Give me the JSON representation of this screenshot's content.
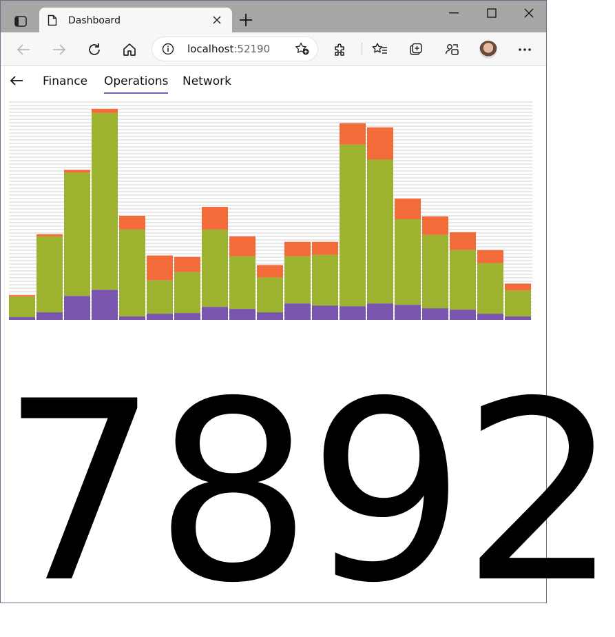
{
  "browser": {
    "tab_title": "Dashboard",
    "address_host": "localhost",
    "address_port": ":52190"
  },
  "nav": {
    "back_icon": "arrow-left-icon",
    "tabs": [
      {
        "label": "Finance",
        "active": false
      },
      {
        "label": "Operations",
        "active": true
      },
      {
        "label": "Network",
        "active": false
      }
    ]
  },
  "colors": {
    "accent": "#7a5bb8",
    "purple": "#7a55b0",
    "green": "#9db22f",
    "orange": "#f46b3a"
  },
  "chart_data": {
    "type": "bar",
    "stacked": true,
    "grid": true,
    "ylim": [
      0,
      320
    ],
    "series": [
      {
        "color": "#7a55b0",
        "values": [
          4,
          11,
          35,
          44,
          5,
          9,
          10,
          19,
          16,
          11,
          24,
          21,
          20,
          24,
          22,
          17,
          15,
          9,
          5
        ]
      },
      {
        "color": "#9db22f",
        "values": [
          30,
          111,
          180,
          258,
          127,
          49,
          60,
          113,
          77,
          51,
          69,
          74,
          236,
          210,
          125,
          107,
          87,
          74,
          38
        ]
      },
      {
        "color": "#f46b3a",
        "values": [
          2,
          3,
          4,
          6,
          20,
          36,
          22,
          33,
          29,
          18,
          21,
          19,
          31,
          47,
          30,
          27,
          26,
          19,
          10
        ]
      }
    ]
  },
  "metric": {
    "value": "7892"
  }
}
